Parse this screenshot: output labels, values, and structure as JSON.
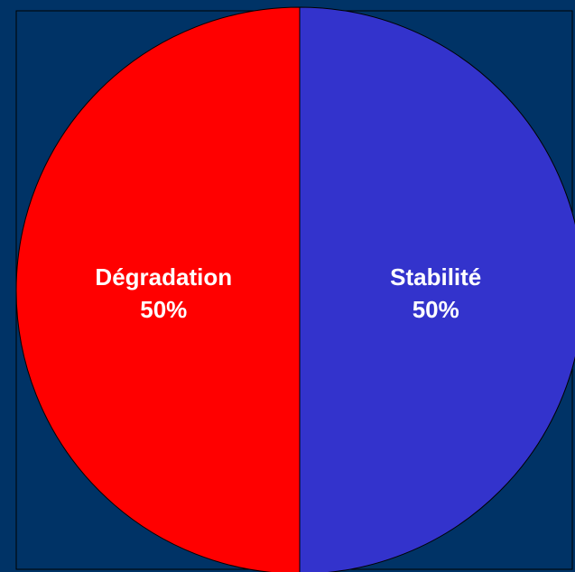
{
  "background_color": "#003366",
  "frame_color": "#000000",
  "chart_data": {
    "type": "pie",
    "title": "",
    "slices": [
      {
        "label": "Dégradation",
        "value": 50,
        "percent_label": "50%",
        "color": "#ff0000"
      },
      {
        "label": "Stabilité",
        "value": 50,
        "percent_label": "50%",
        "color": "#3333cc"
      }
    ],
    "legend": "none"
  }
}
